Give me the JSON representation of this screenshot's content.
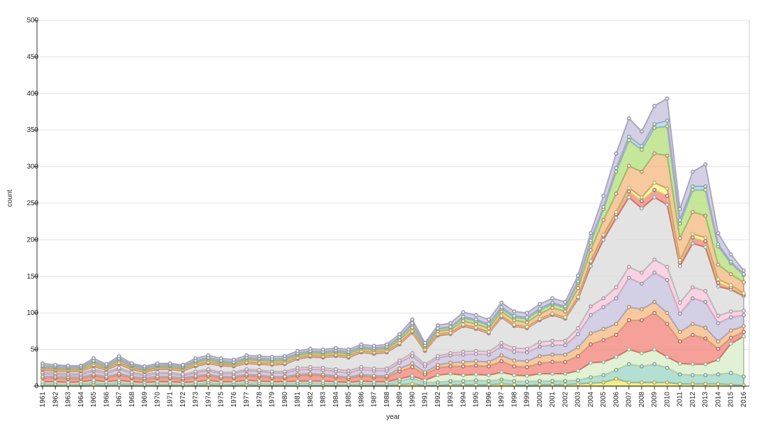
{
  "chart_data": {
    "type": "area",
    "stacked": true,
    "xlabel": "year",
    "ylabel": "count",
    "ylim": [
      0,
      500
    ],
    "yticks": [
      0,
      50,
      100,
      150,
      200,
      250,
      300,
      350,
      400,
      450,
      500
    ],
    "grid": true,
    "legend": "none",
    "x": [
      1961,
      1962,
      1963,
      1964,
      1965,
      1966,
      1967,
      1968,
      1969,
      1970,
      1971,
      1972,
      1973,
      1974,
      1975,
      1976,
      1977,
      1978,
      1979,
      1980,
      1981,
      1982,
      1983,
      1984,
      1985,
      1986,
      1987,
      1988,
      1989,
      1990,
      1991,
      1992,
      1993,
      1994,
      1995,
      1996,
      1997,
      1998,
      1999,
      2000,
      2001,
      2002,
      2003,
      2004,
      2005,
      2006,
      2007,
      2008,
      2009,
      2010,
      2011,
      2012,
      2013,
      2014,
      2015,
      2016
    ],
    "series": [
      {
        "color": "#f2e86b",
        "values": [
          1,
          1,
          1,
          1,
          2,
          1,
          2,
          1,
          1,
          1,
          1,
          1,
          1,
          2,
          1,
          1,
          2,
          1,
          1,
          1,
          1,
          1,
          1,
          1,
          1,
          1,
          1,
          1,
          2,
          3,
          1,
          1,
          2,
          2,
          2,
          2,
          3,
          2,
          1,
          2,
          2,
          2,
          3,
          4,
          5,
          10,
          5,
          5,
          5,
          5,
          3,
          3,
          3,
          3,
          2,
          1
        ]
      },
      {
        "color": "#a0d8c8",
        "values": [
          2,
          2,
          1,
          2,
          3,
          2,
          3,
          2,
          1,
          2,
          2,
          1,
          2,
          3,
          2,
          2,
          3,
          3,
          2,
          2,
          3,
          3,
          3,
          2,
          1,
          3,
          2,
          2,
          5,
          8,
          4,
          4,
          5,
          5,
          6,
          5,
          6,
          5,
          5,
          5,
          5,
          5,
          5,
          8,
          10,
          12,
          25,
          22,
          25,
          20,
          13,
          12,
          12,
          13,
          16,
          12
        ]
      },
      {
        "color": "#d8efc8",
        "values": [
          3,
          3,
          3,
          3,
          3,
          3,
          3,
          3,
          3,
          3,
          3,
          3,
          3,
          3,
          3,
          3,
          3,
          3,
          3,
          3,
          3,
          3,
          3,
          3,
          3,
          3,
          3,
          3,
          3,
          3,
          3,
          10,
          10,
          8,
          8,
          8,
          10,
          8,
          8,
          10,
          10,
          10,
          13,
          20,
          18,
          18,
          20,
          18,
          20,
          15,
          15,
          15,
          15,
          20,
          40,
          55
        ]
      },
      {
        "color": "#f28a80",
        "values": [
          5,
          5,
          5,
          4,
          6,
          5,
          7,
          5,
          4,
          5,
          5,
          4,
          6,
          6,
          5,
          5,
          6,
          6,
          5,
          5,
          7,
          8,
          7,
          6,
          5,
          7,
          6,
          6,
          10,
          12,
          8,
          10,
          10,
          12,
          12,
          12,
          15,
          12,
          12,
          14,
          16,
          16,
          20,
          25,
          30,
          30,
          40,
          45,
          50,
          45,
          30,
          40,
          35,
          15,
          8,
          6
        ]
      },
      {
        "color": "#f5bb86",
        "values": [
          2,
          2,
          2,
          2,
          2,
          2,
          2,
          2,
          2,
          2,
          2,
          2,
          2,
          2,
          2,
          2,
          2,
          2,
          2,
          2,
          2,
          2,
          2,
          2,
          2,
          2,
          2,
          2,
          4,
          5,
          3,
          4,
          5,
          6,
          6,
          6,
          8,
          8,
          8,
          10,
          10,
          10,
          12,
          15,
          15,
          15,
          18,
          15,
          15,
          15,
          13,
          15,
          15,
          10,
          10,
          8
        ]
      },
      {
        "color": "#c8c4e0",
        "values": [
          4,
          3,
          3,
          3,
          5,
          4,
          6,
          4,
          3,
          4,
          4,
          3,
          4,
          5,
          4,
          4,
          5,
          5,
          5,
          5,
          6,
          6,
          6,
          6,
          6,
          7,
          7,
          7,
          8,
          10,
          8,
          9,
          10,
          10,
          10,
          10,
          12,
          12,
          12,
          13,
          13,
          13,
          18,
          25,
          30,
          35,
          40,
          35,
          40,
          45,
          25,
          35,
          35,
          25,
          18,
          15
        ]
      },
      {
        "color": "#f8c8dc",
        "values": [
          2,
          2,
          2,
          2,
          2,
          2,
          2,
          2,
          2,
          2,
          2,
          2,
          2,
          2,
          2,
          2,
          2,
          2,
          2,
          2,
          3,
          3,
          3,
          3,
          3,
          3,
          3,
          3,
          3,
          4,
          3,
          3,
          3,
          4,
          4,
          4,
          5,
          5,
          5,
          6,
          6,
          6,
          8,
          12,
          12,
          15,
          15,
          15,
          18,
          18,
          15,
          15,
          15,
          10,
          8,
          6
        ]
      },
      {
        "color": "#dcdcdc",
        "values": [
          3,
          3,
          3,
          3,
          4,
          3,
          5,
          4,
          3,
          4,
          4,
          5,
          7,
          8,
          9,
          8,
          8,
          8,
          9,
          10,
          12,
          14,
          14,
          18,
          18,
          20,
          20,
          22,
          22,
          28,
          18,
          28,
          26,
          35,
          30,
          25,
          35,
          30,
          28,
          30,
          35,
          30,
          40,
          55,
          80,
          95,
          95,
          88,
          85,
          85,
          50,
          60,
          60,
          40,
          30,
          20
        ]
      },
      {
        "color": "#f28a80",
        "values": [
          1,
          1,
          1,
          1,
          1,
          1,
          1,
          1,
          1,
          1,
          1,
          1,
          1,
          1,
          1,
          1,
          1,
          1,
          1,
          1,
          1,
          1,
          1,
          1,
          1,
          1,
          1,
          1,
          1,
          1,
          1,
          1,
          1,
          1,
          1,
          1,
          1,
          1,
          1,
          1,
          1,
          1,
          2,
          5,
          5,
          5,
          8,
          10,
          10,
          12,
          5,
          8,
          8,
          5,
          3,
          2
        ]
      },
      {
        "color": "#fbf28a",
        "values": [
          1,
          1,
          1,
          1,
          1,
          1,
          1,
          1,
          1,
          1,
          1,
          1,
          1,
          1,
          1,
          1,
          1,
          1,
          1,
          1,
          1,
          1,
          1,
          1,
          1,
          1,
          1,
          1,
          1,
          1,
          1,
          1,
          1,
          1,
          1,
          1,
          1,
          1,
          1,
          1,
          1,
          1,
          1,
          2,
          2,
          3,
          5,
          5,
          10,
          10,
          3,
          5,
          5,
          5,
          3,
          2
        ]
      },
      {
        "color": "#f5bb86",
        "values": [
          2,
          2,
          2,
          2,
          3,
          2,
          3,
          2,
          2,
          2,
          2,
          2,
          3,
          3,
          2,
          2,
          3,
          3,
          3,
          3,
          3,
          3,
          3,
          3,
          3,
          3,
          3,
          3,
          4,
          5,
          3,
          4,
          4,
          5,
          5,
          5,
          6,
          6,
          6,
          7,
          8,
          8,
          12,
          15,
          20,
          25,
          30,
          35,
          40,
          45,
          30,
          30,
          30,
          20,
          15,
          15
        ]
      },
      {
        "color": "#b8e080",
        "values": [
          1,
          1,
          1,
          1,
          2,
          1,
          2,
          1,
          1,
          1,
          1,
          1,
          2,
          2,
          2,
          1,
          2,
          2,
          2,
          2,
          2,
          2,
          2,
          2,
          2,
          2,
          2,
          2,
          3,
          4,
          2,
          3,
          3,
          4,
          4,
          4,
          4,
          4,
          5,
          5,
          5,
          5,
          7,
          10,
          15,
          30,
          35,
          30,
          35,
          40,
          20,
          30,
          35,
          25,
          15,
          10
        ]
      },
      {
        "color": "#a8d8e8",
        "values": [
          1,
          1,
          1,
          1,
          1,
          1,
          1,
          1,
          1,
          1,
          1,
          1,
          1,
          1,
          1,
          1,
          1,
          1,
          1,
          1,
          1,
          1,
          1,
          1,
          1,
          1,
          1,
          1,
          1,
          2,
          1,
          1,
          1,
          2,
          2,
          2,
          2,
          2,
          2,
          2,
          2,
          2,
          2,
          3,
          3,
          5,
          5,
          5,
          5,
          8,
          5,
          5,
          5,
          3,
          2,
          1
        ]
      },
      {
        "color": "#c8c4e0",
        "values": [
          3,
          2,
          2,
          2,
          3,
          2,
          3,
          2,
          2,
          2,
          2,
          2,
          3,
          3,
          3,
          3,
          3,
          3,
          3,
          3,
          3,
          3,
          3,
          3,
          3,
          3,
          3,
          3,
          4,
          5,
          3,
          4,
          5,
          6,
          6,
          6,
          6,
          6,
          6,
          6,
          6,
          6,
          8,
          10,
          15,
          20,
          25,
          20,
          25,
          30,
          15,
          20,
          30,
          15,
          10,
          5
        ]
      }
    ]
  }
}
